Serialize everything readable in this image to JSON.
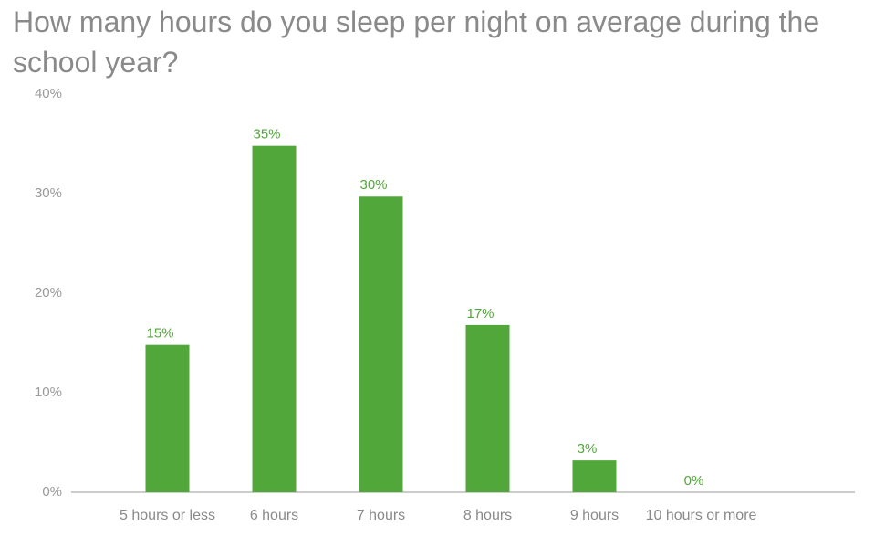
{
  "chart_data": {
    "type": "bar",
    "title": "How many hours do you sleep per night on average during the school year?",
    "categories": [
      "5 hours or less",
      "6 hours",
      "7 hours",
      "8 hours",
      "9 hours",
      "10 hours or more"
    ],
    "values": [
      14.8,
      34.8,
      29.7,
      16.8,
      3.2,
      0
    ],
    "value_labels": [
      "15%",
      "35%",
      "30%",
      "17%",
      "3%",
      "0%"
    ],
    "color": "#52a73a",
    "ylim": [
      0,
      40
    ],
    "yticks": [
      {
        "value": 0,
        "label": "0%"
      },
      {
        "value": 10,
        "label": "10%"
      },
      {
        "value": 20,
        "label": "20%"
      },
      {
        "value": 30,
        "label": "30%"
      },
      {
        "value": 40,
        "label": "40%"
      }
    ],
    "grid": false
  }
}
